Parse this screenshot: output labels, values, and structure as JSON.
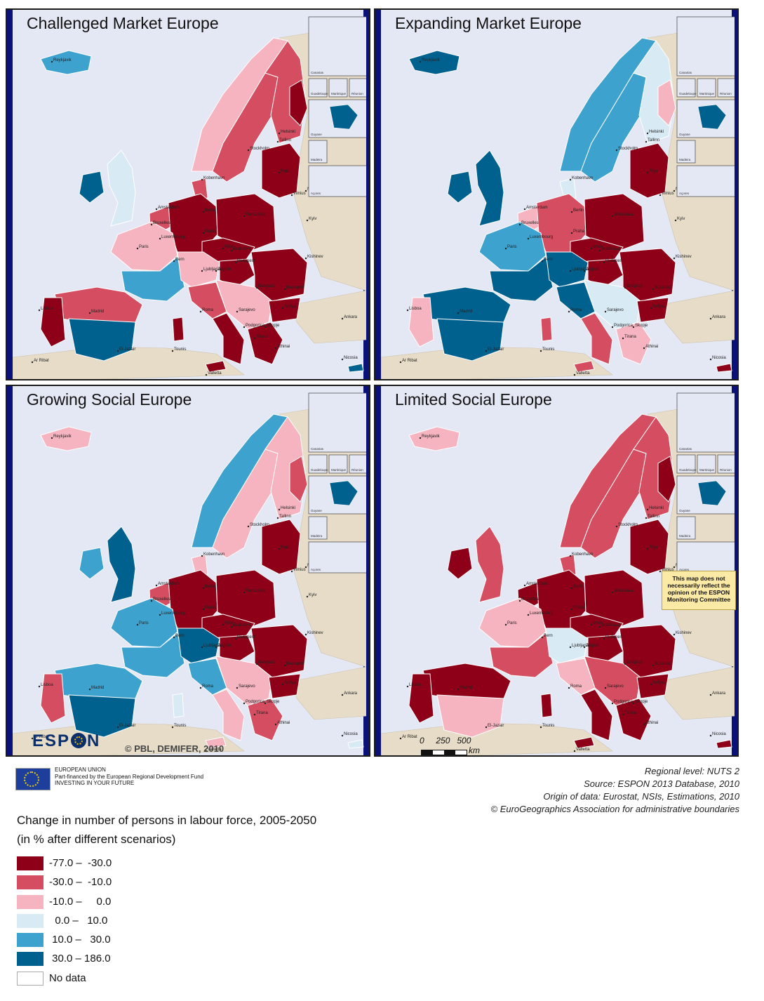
{
  "colors": {
    "c1": "#8e0017",
    "c2": "#d44d60",
    "c3": "#f5b4bf",
    "c4": "#d8ebf5",
    "c5": "#3ea2cf",
    "c6": "#00618f",
    "c7": "#ffffff",
    "land_outside": "#e6dcc8",
    "sea": "#e4e7f4"
  },
  "panels": [
    {
      "title": "Challenged Market Europe"
    },
    {
      "title": "Expanding Market Europe"
    },
    {
      "title": "Growing Social Europe"
    },
    {
      "title": "Limited Social Europe"
    }
  ],
  "insets": {
    "canarias": "Canarias",
    "guadeloupe": "Guadeloupe",
    "martinique": "Martinique",
    "reunion": "Réunion",
    "guyane": "Guyane",
    "madeira": "Madeira",
    "acores": "Açores"
  },
  "cities": [
    "Reykjavik",
    "Helsinki",
    "Tallinn",
    "Stockholm",
    "Riga",
    "Kobenhavn",
    "Vilnius",
    "Minsk",
    "Amsterdam",
    "Berlin",
    "Warszawa",
    "Bruxelles",
    "Praha",
    "Kyiv",
    "Luxembourg",
    "Paris",
    "Bratislava",
    "Wien",
    "Budapest",
    "Kishinev",
    "Bern",
    "Ljubljana",
    "Zagreb",
    "Beograd",
    "Bucuresti",
    "Sarajevo",
    "Sofiya",
    "Podgorica",
    "Skopje",
    "Lisboa",
    "Madrid",
    "Roma",
    "Tirana",
    "Ankara",
    "Athinai",
    "El-Jazair",
    "Tounis",
    "Ar Ribat",
    "Valletta",
    "Nicosia"
  ],
  "note": "This map does not necessarily reflect the opinion of the ESPON Monitoring Committee",
  "logo": {
    "left": "ESP",
    "right": "N"
  },
  "copyright": "© PBL, DEMIFER, 2010",
  "scale": {
    "labels": "0     250   500",
    "unit": "km"
  },
  "eu": {
    "line1": "EUROPEAN UNION",
    "line2": "Part-financed by the European Regional Development Fund",
    "line3": "INVESTING IN YOUR FUTURE"
  },
  "source": {
    "line1": "Regional level: NUTS 2",
    "line2": "Source:  ESPON 2013 Database, 2010",
    "line3": "Origin of data: Eurostat, NSIs, Estimations, 2010",
    "line4": "© EuroGeographics Association for administrative boundaries"
  },
  "legend": {
    "title1": "Change in number of persons in labour force, 2005-2050",
    "title2": "(in % after different scenarios)",
    "items": [
      {
        "label": "-77.0 –  -30.0",
        "color": "#8e0017"
      },
      {
        "label": "-30.0 –  -10.0",
        "color": "#d44d60"
      },
      {
        "label": "-10.0 –     0.0",
        "color": "#f5b4bf"
      },
      {
        "label": "  0.0 –   10.0",
        "color": "#d8ebf5"
      },
      {
        "label": " 10.0 –   30.0",
        "color": "#3ea2cf"
      },
      {
        "label": " 30.0 – 186.0",
        "color": "#00618f"
      },
      {
        "label": "No data",
        "color": "#ffffff"
      }
    ]
  }
}
